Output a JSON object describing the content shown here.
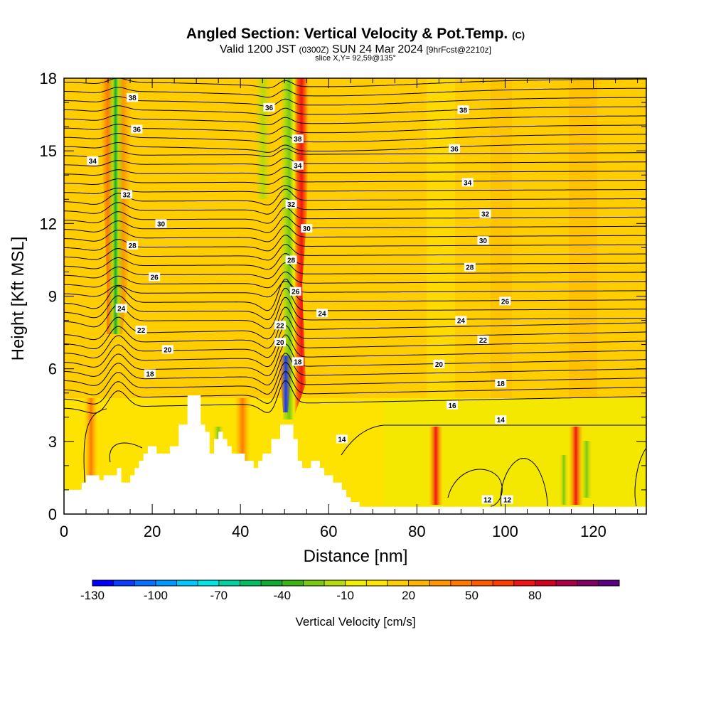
{
  "chart_data": {
    "type": "heatmap",
    "title": "Angled Section: Vertical Velocity & Pot.Temp.",
    "title_suffix": "(C)",
    "subtitle_parts": [
      "Valid 1200 JST ",
      "(0300Z)",
      " SUN 24 Mar 2024 ",
      "[9hrFcst@2210z]"
    ],
    "subtitle2": "slice X,Y= 92,59@135°",
    "xlabel": "Distance [nm]",
    "ylabel": "Height [Kft MSL]",
    "xlim": [
      0,
      132
    ],
    "ylim": [
      0,
      18
    ],
    "xticks": [
      0,
      20,
      40,
      60,
      80,
      100,
      120
    ],
    "yticks": [
      0,
      3,
      6,
      9,
      12,
      15,
      18
    ],
    "colorbar": {
      "label": "Vertical Velocity [cm/s]",
      "tick_labels": [
        "-130",
        "-100",
        "-70",
        "-40",
        "-10",
        "20",
        "50",
        "80"
      ],
      "min": -130,
      "max": 110,
      "step": 10,
      "colors": [
        "#0000ff",
        "#0a3cff",
        "#0a6eff",
        "#0096ff",
        "#00c8ff",
        "#00e6e6",
        "#00d2a0",
        "#00be64",
        "#14aa32",
        "#3cb414",
        "#78c814",
        "#b4dc0a",
        "#f0f000",
        "#ffe600",
        "#ffcd00",
        "#ffb400",
        "#ff9600",
        "#ff7800",
        "#ff5a00",
        "#ff3c00",
        "#f01414",
        "#d2001e",
        "#aa0046",
        "#820064",
        "#5a0082"
      ]
    },
    "terrain": [
      [
        0,
        1.0
      ],
      [
        4,
        1.0
      ],
      [
        4,
        1.3
      ],
      [
        5,
        1.3
      ],
      [
        5,
        1.6
      ],
      [
        8,
        1.6
      ],
      [
        8,
        1.4
      ],
      [
        9,
        1.4
      ],
      [
        9,
        1.6
      ],
      [
        12,
        1.6
      ],
      [
        12,
        1.9
      ],
      [
        13,
        1.9
      ],
      [
        13,
        1.3
      ],
      [
        15,
        1.3
      ],
      [
        15,
        1.6
      ],
      [
        16,
        1.6
      ],
      [
        16,
        1.9
      ],
      [
        17,
        1.9
      ],
      [
        17,
        2.2
      ],
      [
        18,
        2.2
      ],
      [
        18,
        2.5
      ],
      [
        19,
        2.5
      ],
      [
        19,
        2.8
      ],
      [
        21,
        2.8
      ],
      [
        21,
        2.5
      ],
      [
        24,
        2.5
      ],
      [
        24,
        2.8
      ],
      [
        26,
        2.8
      ],
      [
        26,
        3.7
      ],
      [
        28,
        3.7
      ],
      [
        28,
        4.9
      ],
      [
        31,
        4.9
      ],
      [
        31,
        3.7
      ],
      [
        32,
        3.7
      ],
      [
        32,
        3.4
      ],
      [
        33,
        3.4
      ],
      [
        33,
        2.5
      ],
      [
        34,
        2.5
      ],
      [
        34,
        3.1
      ],
      [
        35,
        3.1
      ],
      [
        35,
        3.4
      ],
      [
        36,
        3.4
      ],
      [
        36,
        3.1
      ],
      [
        37,
        3.1
      ],
      [
        37,
        2.8
      ],
      [
        38,
        2.8
      ],
      [
        38,
        2.5
      ],
      [
        41,
        2.5
      ],
      [
        41,
        2.2
      ],
      [
        43,
        2.2
      ],
      [
        43,
        1.9
      ],
      [
        44,
        1.9
      ],
      [
        44,
        2.2
      ],
      [
        45,
        2.2
      ],
      [
        45,
        2.5
      ],
      [
        47,
        2.5
      ],
      [
        47,
        3.1
      ],
      [
        49,
        3.1
      ],
      [
        49,
        3.7
      ],
      [
        52,
        3.7
      ],
      [
        52,
        3.1
      ],
      [
        53,
        3.1
      ],
      [
        53,
        2.2
      ],
      [
        54,
        2.2
      ],
      [
        54,
        1.9
      ],
      [
        56,
        1.9
      ],
      [
        56,
        2.2
      ],
      [
        58,
        2.2
      ],
      [
        58,
        1.9
      ],
      [
        59,
        1.9
      ],
      [
        59,
        1.6
      ],
      [
        61,
        1.6
      ],
      [
        61,
        1.3
      ],
      [
        63,
        1.3
      ],
      [
        63,
        1.0
      ],
      [
        64,
        1.0
      ],
      [
        64,
        0.7
      ],
      [
        65,
        0.7
      ],
      [
        65,
        0.5
      ],
      [
        67,
        0.5
      ],
      [
        67,
        0.3
      ],
      [
        132,
        0.3
      ]
    ],
    "contour_labels": [
      {
        "text": "38",
        "x": 15.5,
        "y": 17.2
      },
      {
        "text": "36",
        "x": 16.5,
        "y": 15.9
      },
      {
        "text": "34",
        "x": 6.5,
        "y": 14.6
      },
      {
        "text": "32",
        "x": 14.2,
        "y": 13.2
      },
      {
        "text": "30",
        "x": 22,
        "y": 12.0
      },
      {
        "text": "28",
        "x": 15.5,
        "y": 11.1
      },
      {
        "text": "26",
        "x": 20.5,
        "y": 9.8
      },
      {
        "text": "24",
        "x": 13.0,
        "y": 8.5
      },
      {
        "text": "22",
        "x": 17.5,
        "y": 7.6
      },
      {
        "text": "20",
        "x": 23.5,
        "y": 6.8
      },
      {
        "text": "18",
        "x": 19.5,
        "y": 5.8
      },
      {
        "text": "36",
        "x": 46.5,
        "y": 16.8
      },
      {
        "text": "38",
        "x": 53.0,
        "y": 15.5
      },
      {
        "text": "34",
        "x": 53.0,
        "y": 14.4
      },
      {
        "text": "32",
        "x": 51.5,
        "y": 12.8
      },
      {
        "text": "30",
        "x": 55.0,
        "y": 11.8
      },
      {
        "text": "28",
        "x": 51.5,
        "y": 10.5
      },
      {
        "text": "26",
        "x": 52.5,
        "y": 9.2
      },
      {
        "text": "24",
        "x": 58.5,
        "y": 8.3
      },
      {
        "text": "22",
        "x": 49.0,
        "y": 7.8
      },
      {
        "text": "20",
        "x": 49.0,
        "y": 7.1
      },
      {
        "text": "18",
        "x": 53.0,
        "y": 6.3
      },
      {
        "text": "38",
        "x": 90.5,
        "y": 16.7
      },
      {
        "text": "36",
        "x": 88.5,
        "y": 15.1
      },
      {
        "text": "34",
        "x": 91.5,
        "y": 13.7
      },
      {
        "text": "32",
        "x": 95.5,
        "y": 12.4
      },
      {
        "text": "30",
        "x": 95.0,
        "y": 11.3
      },
      {
        "text": "28",
        "x": 92.0,
        "y": 10.2
      },
      {
        "text": "26",
        "x": 100.0,
        "y": 8.8
      },
      {
        "text": "24",
        "x": 90.0,
        "y": 8.0
      },
      {
        "text": "22",
        "x": 95.0,
        "y": 7.2
      },
      {
        "text": "20",
        "x": 85.0,
        "y": 6.2
      },
      {
        "text": "18",
        "x": 99.0,
        "y": 5.4
      },
      {
        "text": "16",
        "x": 88.0,
        "y": 4.5
      },
      {
        "text": "14",
        "x": 99.0,
        "y": 3.9
      },
      {
        "text": "14",
        "x": 63.0,
        "y": 3.1
      },
      {
        "text": "12",
        "x": 96.0,
        "y": 0.6
      },
      {
        "text": "12",
        "x": 100.5,
        "y": 0.6
      }
    ]
  }
}
